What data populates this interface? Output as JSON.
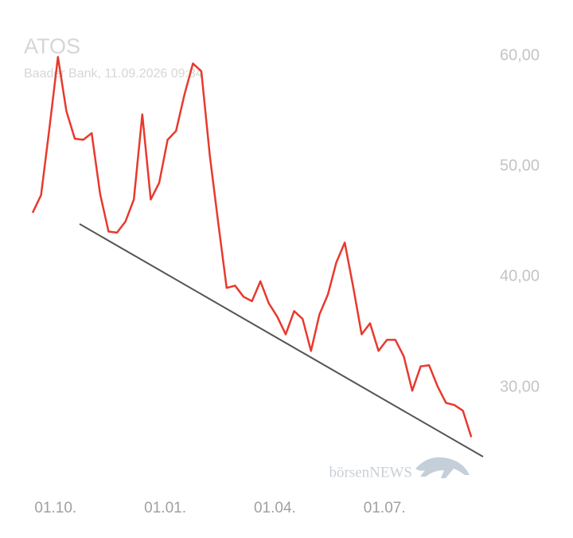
{
  "chart_data": {
    "type": "line",
    "title": "ATOS",
    "subtitle": "Baader Bank, 11.09.2026 09:34",
    "watermark": "börsenNEWS",
    "categories": [
      null,
      null,
      null,
      "01.10.",
      null,
      null,
      null,
      null,
      null,
      null,
      null,
      null,
      null,
      null,
      null,
      null,
      "01.01.",
      null,
      null,
      null,
      null,
      null,
      null,
      null,
      null,
      null,
      null,
      null,
      null,
      "01.04.",
      null,
      null,
      null,
      null,
      null,
      null,
      null,
      null,
      null,
      null,
      null,
      null,
      "01.07.",
      null,
      null,
      null,
      null,
      null,
      null,
      null,
      null,
      null,
      null
    ],
    "series": [
      {
        "name": "ATOS",
        "color": "#e8392e",
        "values": [
          45.8,
          47.4,
          53.5,
          59.9,
          55.0,
          52.5,
          52.4,
          53.0,
          47.5,
          44.1,
          44.0,
          45.0,
          47.0,
          54.7,
          47.0,
          48.5,
          52.4,
          53.2,
          56.5,
          59.3,
          58.6,
          51.0,
          44.9,
          39.0,
          39.2,
          38.2,
          37.8,
          39.6,
          37.6,
          36.4,
          34.8,
          36.9,
          36.2,
          33.3,
          36.6,
          38.4,
          41.3,
          43.1,
          39.1,
          34.8,
          35.8,
          33.3,
          34.3,
          34.3,
          32.8,
          29.7,
          31.9,
          32.0,
          30.1,
          28.6,
          28.4,
          27.9,
          25.5
        ]
      }
    ],
    "ylim": [
      23,
      63
    ],
    "yticks": [
      {
        "value": 30,
        "label": "30,00"
      },
      {
        "value": 40,
        "label": "40,00"
      },
      {
        "value": 50,
        "label": "50,00"
      },
      {
        "value": 60,
        "label": "60,00"
      }
    ],
    "grid": false
  }
}
